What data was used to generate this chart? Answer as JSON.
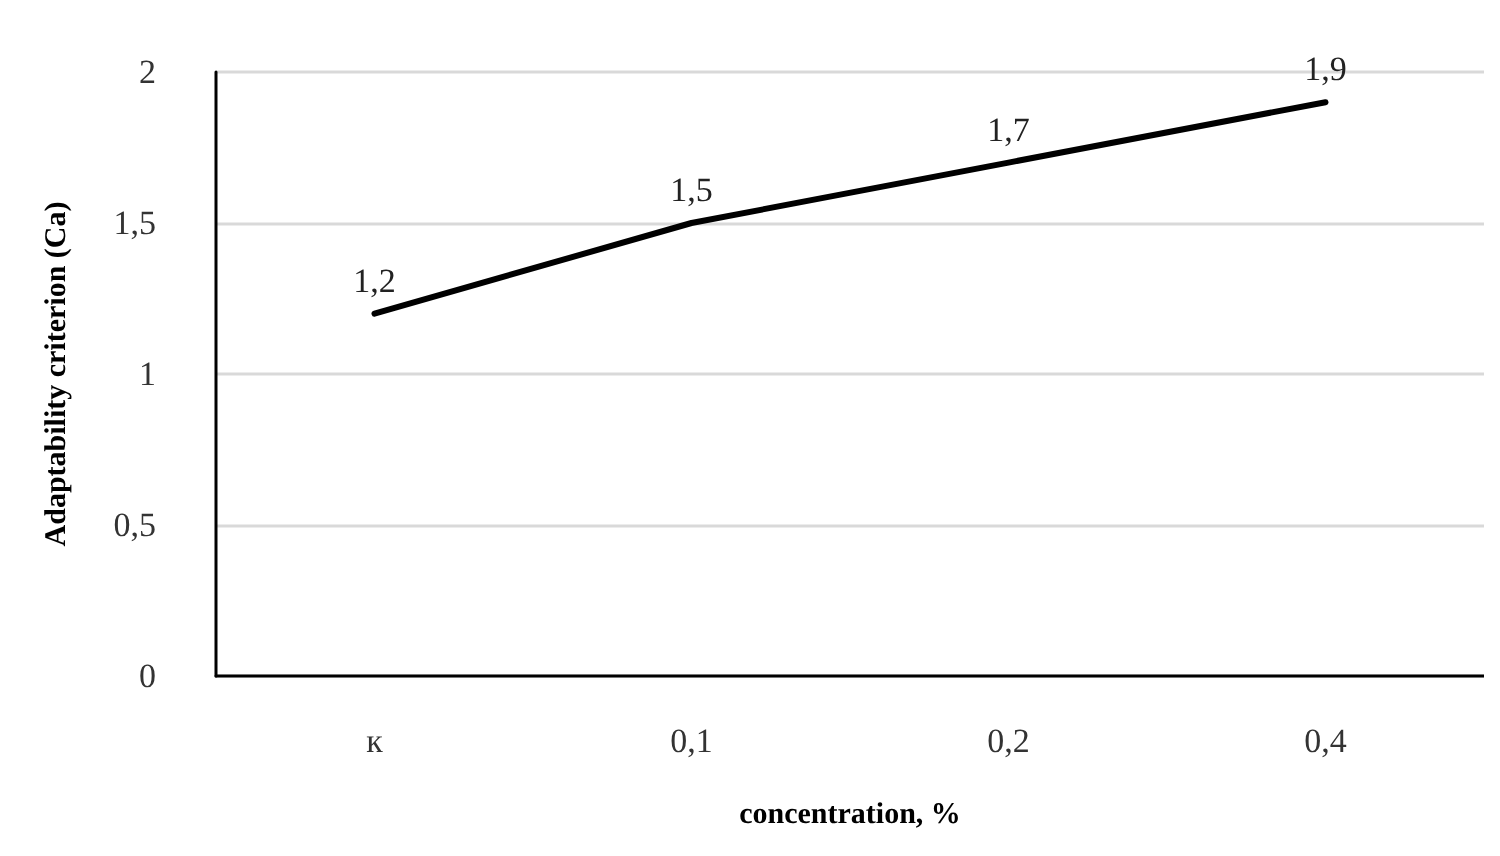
{
  "chart_data": {
    "type": "line",
    "xlabel": "concentration, %",
    "ylabel": "Adaptability criterion (Ca)",
    "categories": [
      "к",
      "0,1",
      "0,2",
      "0,4"
    ],
    "series": [
      {
        "color": "#000000",
        "values": [
          1.2,
          1.5,
          1.7,
          1.9
        ],
        "value_labels": [
          "1,2",
          "1,5",
          "1,7",
          "1,9"
        ]
      }
    ],
    "ylim": [
      0,
      2
    ],
    "yticks": [
      0,
      {
        "value": 0.5,
        "label": "0,5"
      },
      1,
      {
        "value": 1.5,
        "label": "1,5"
      },
      2
    ],
    "grid": "y",
    "marker": "none",
    "line_style": "solid"
  }
}
